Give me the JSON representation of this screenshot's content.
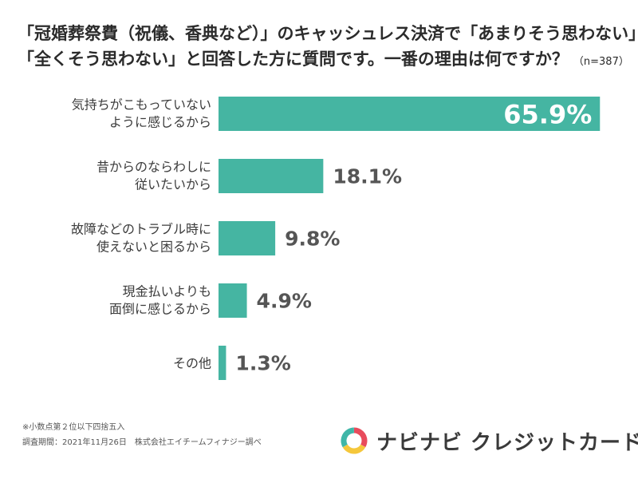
{
  "header": {
    "title_line1": "「冠婚葬祭費（祝儀、香典など）」のキャッシュレス決済で「あまりそう思わない」",
    "title_line2": "「全くそう思わない」と回答した方に質問です。一番の理由は何ですか？",
    "sample_size": "（n=387）"
  },
  "chart_data": {
    "type": "bar",
    "orientation": "horizontal",
    "categories": [
      [
        "気持ちがこもっていない",
        "ように感じるから"
      ],
      [
        "昔からのならわしに",
        "従いたいから"
      ],
      [
        "故障などのトラブル時に",
        "使えないと困るから"
      ],
      [
        "現金払いよりも",
        "面倒に感じるから"
      ],
      [
        "その他"
      ]
    ],
    "values": [
      65.9,
      18.1,
      9.8,
      4.9,
      1.3
    ],
    "value_labels": [
      "65.9%",
      "18.1%",
      "9.8%",
      "4.9%",
      "1.3%"
    ],
    "xlim": [
      0,
      66
    ],
    "bar_color": "#45b5a2",
    "first_label_color": "#ffffff",
    "label_color": "#555555"
  },
  "footer": {
    "note": "※小数点第２位以下四捨五入",
    "survey": "調査期間：2021年11月26日　株式会社エイチームフィナジー調べ"
  },
  "brand": {
    "name": "ナビナビ クレジットカード",
    "ring_colors": [
      "#e84b5c",
      "#f5c73b",
      "#3fb6a8"
    ]
  }
}
